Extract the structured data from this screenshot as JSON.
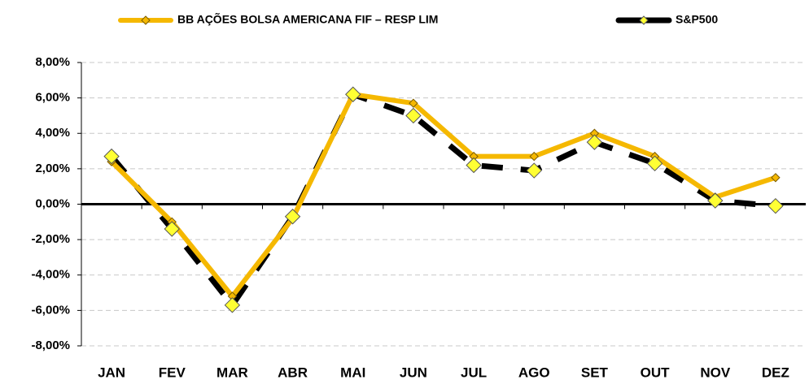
{
  "chart_data": {
    "type": "line",
    "categories": [
      "JAN",
      "FEV",
      "MAR",
      "ABR",
      "MAI",
      "JUN",
      "JUL",
      "AGO",
      "SET",
      "OUT",
      "NOV",
      "DEZ"
    ],
    "series": [
      {
        "name": "BB AÇÕES BOLSA AMERICANA FIF – RESP LIM",
        "color": "#f5b800",
        "values": [
          2.4,
          -1.0,
          -5.2,
          -0.8,
          6.2,
          5.7,
          2.7,
          2.7,
          4.0,
          2.7,
          0.4,
          1.5
        ]
      },
      {
        "name": "S&P500",
        "color": "#000000",
        "values": [
          2.7,
          -1.4,
          -5.7,
          -0.7,
          6.2,
          5.0,
          2.2,
          1.9,
          3.5,
          2.3,
          0.2,
          -0.1
        ]
      }
    ],
    "ylim": [
      -8,
      8
    ],
    "yticks": [
      {
        "value": -8,
        "label": "-8,00%"
      },
      {
        "value": -6,
        "label": "-6,00%"
      },
      {
        "value": -4,
        "label": "-4,00%"
      },
      {
        "value": -2,
        "label": "-2,00%"
      },
      {
        "value": 0,
        "label": "0,00%"
      },
      {
        "value": 2,
        "label": "2,00%"
      },
      {
        "value": 4,
        "label": "4,00%"
      },
      {
        "value": 6,
        "label": "6,00%"
      },
      {
        "value": 8,
        "label": "8,00%"
      }
    ],
    "grid": true
  }
}
